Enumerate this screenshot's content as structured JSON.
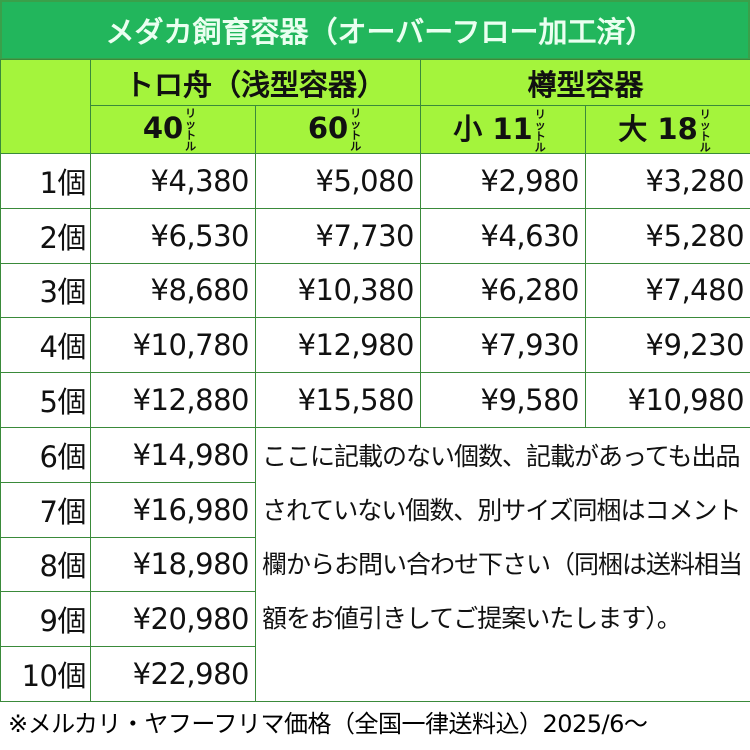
{
  "title": "メダカ飼育容器（オーバーフロー加工済）",
  "groups": {
    "shallow": "トロ舟（浅型容器）",
    "barrel": "樽型容器"
  },
  "columns": [
    {
      "label": "40",
      "unit": "リットル"
    },
    {
      "label": "60",
      "unit": "リットル"
    },
    {
      "label": "小 11",
      "unit": "リットル"
    },
    {
      "label": "大 18",
      "unit": "リットル"
    }
  ],
  "rows": [
    {
      "qty": "1個",
      "prices": [
        "¥4,380",
        "¥5,080",
        "¥2,980",
        "¥3,280"
      ]
    },
    {
      "qty": "2個",
      "prices": [
        "¥6,530",
        "¥7,730",
        "¥4,630",
        "¥5,280"
      ]
    },
    {
      "qty": "3個",
      "prices": [
        "¥8,680",
        "¥10,380",
        "¥6,280",
        "¥7,480"
      ]
    },
    {
      "qty": "4個",
      "prices": [
        "¥10,780",
        "¥12,980",
        "¥7,930",
        "¥9,230"
      ]
    },
    {
      "qty": "5個",
      "prices": [
        "¥12,880",
        "¥15,580",
        "¥9,580",
        "¥10,980"
      ]
    },
    {
      "qty": "6個",
      "prices": [
        "¥14,980"
      ]
    },
    {
      "qty": "7個",
      "prices": [
        "¥16,980"
      ]
    },
    {
      "qty": "8個",
      "prices": [
        "¥18,980"
      ]
    },
    {
      "qty": "9個",
      "prices": [
        "¥20,980"
      ]
    },
    {
      "qty": "10個",
      "prices": [
        "¥22,980"
      ]
    }
  ],
  "note": "ここに記載のない個数、記載があっても出品されていない個数、別サイズ同梱はコメント欄からお問い合わせ下さい（同梱は送料相当額をお値引きしてご提案いたします）。",
  "footer": "※メルカリ・ヤフーフリマ価格（全国一律送料込）2025/6～",
  "colors": {
    "title_bg": "#22b65c",
    "header_bg": "#a4f43c",
    "grid": "#3a8a3a"
  }
}
